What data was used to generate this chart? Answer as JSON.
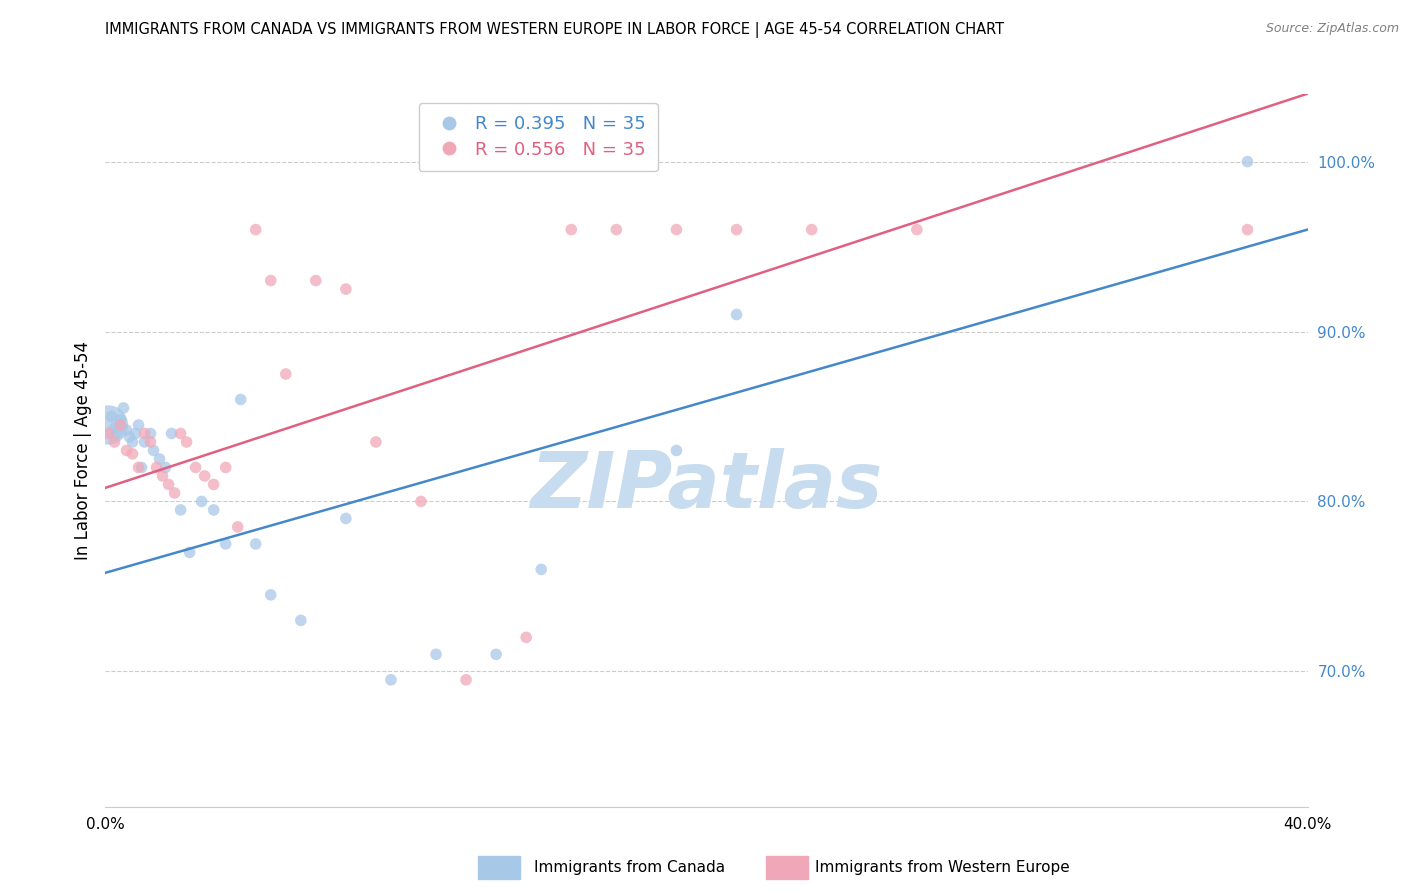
{
  "title": "IMMIGRANTS FROM CANADA VS IMMIGRANTS FROM WESTERN EUROPE IN LABOR FORCE | AGE 45-54 CORRELATION CHART",
  "source": "Source: ZipAtlas.com",
  "ylabel": "In Labor Force | Age 45-54",
  "r_canada": 0.395,
  "n_canada": 35,
  "r_western_europe": 0.556,
  "n_western_europe": 35,
  "color_canada": "#A8C8E8",
  "color_western_europe": "#F0A8B8",
  "color_line_canada": "#4488CC",
  "color_line_western_europe": "#E06080",
  "color_right_axis": "#4488CC",
  "color_watermark": "#C8DCF0",
  "background_color": "#FFFFFF",
  "xlim": [
    0.0,
    0.4
  ],
  "ylim": [
    0.62,
    1.04
  ],
  "canada_x": [
    0.001,
    0.002,
    0.003,
    0.004,
    0.005,
    0.006,
    0.007,
    0.008,
    0.009,
    0.01,
    0.011,
    0.012,
    0.013,
    0.015,
    0.016,
    0.018,
    0.02,
    0.022,
    0.025,
    0.028,
    0.032,
    0.036,
    0.04,
    0.045,
    0.05,
    0.055,
    0.065,
    0.08,
    0.095,
    0.11,
    0.13,
    0.145,
    0.19,
    0.21,
    0.38
  ],
  "canada_y": [
    0.845,
    0.85,
    0.843,
    0.84,
    0.848,
    0.855,
    0.842,
    0.838,
    0.835,
    0.84,
    0.845,
    0.82,
    0.835,
    0.84,
    0.83,
    0.825,
    0.82,
    0.84,
    0.795,
    0.77,
    0.8,
    0.795,
    0.775,
    0.86,
    0.775,
    0.745,
    0.73,
    0.79,
    0.695,
    0.71,
    0.71,
    0.76,
    0.83,
    0.91,
    1.0
  ],
  "canada_sizes": [
    800,
    70,
    70,
    70,
    70,
    70,
    70,
    70,
    70,
    70,
    70,
    70,
    70,
    70,
    70,
    70,
    70,
    70,
    70,
    70,
    70,
    70,
    70,
    70,
    70,
    70,
    70,
    70,
    70,
    70,
    70,
    70,
    70,
    70,
    70
  ],
  "we_x": [
    0.001,
    0.003,
    0.005,
    0.007,
    0.009,
    0.011,
    0.013,
    0.015,
    0.017,
    0.019,
    0.021,
    0.023,
    0.025,
    0.027,
    0.03,
    0.033,
    0.036,
    0.04,
    0.044,
    0.05,
    0.055,
    0.06,
    0.07,
    0.08,
    0.09,
    0.105,
    0.12,
    0.14,
    0.155,
    0.17,
    0.19,
    0.21,
    0.235,
    0.27,
    0.38
  ],
  "we_y": [
    0.84,
    0.835,
    0.845,
    0.83,
    0.828,
    0.82,
    0.84,
    0.835,
    0.82,
    0.815,
    0.81,
    0.805,
    0.84,
    0.835,
    0.82,
    0.815,
    0.81,
    0.82,
    0.785,
    0.96,
    0.93,
    0.875,
    0.93,
    0.925,
    0.835,
    0.8,
    0.695,
    0.72,
    0.96,
    0.96,
    0.96,
    0.96,
    0.96,
    0.96,
    0.96
  ],
  "we_sizes": [
    70,
    70,
    70,
    70,
    70,
    70,
    70,
    70,
    70,
    70,
    70,
    70,
    70,
    70,
    70,
    70,
    70,
    70,
    70,
    70,
    70,
    70,
    70,
    70,
    70,
    70,
    70,
    70,
    70,
    70,
    70,
    70,
    70,
    70,
    70
  ],
  "line_canada_x0": 0.0,
  "line_canada_y0": 0.758,
  "line_canada_x1": 0.4,
  "line_canada_y1": 0.96,
  "line_we_x0": 0.0,
  "line_we_y0": 0.808,
  "line_we_x1": 0.4,
  "line_we_y1": 1.04
}
